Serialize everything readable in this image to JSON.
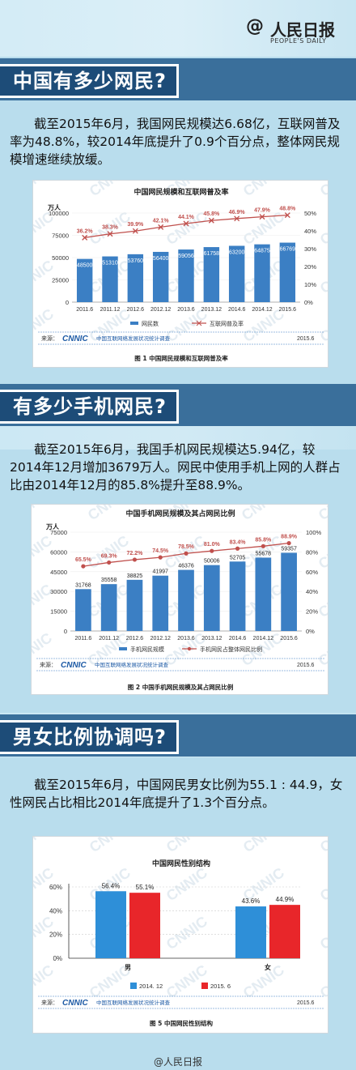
{
  "header": {
    "brand_symbol": "@",
    "brand_name": "人民日报",
    "brand_sub": "PEOPLE'S DAILY"
  },
  "colors": {
    "bar": "#3b7fc4",
    "line": "#c0504d",
    "banner": "#3a6f9b",
    "tag": "#1d4c78",
    "red_bar": "#e8262a",
    "blue_bar": "#2e8fd8"
  },
  "sections": [
    {
      "title": "中国有多少网民?",
      "paragraph": "截至2015年6月，我国网民规模达6.68亿，互联网普及率为48.8%，较2014年底提升了0.9个百分点，整体网民规模增速继续放缓。"
    },
    {
      "title": "有多少手机网民?",
      "paragraph": "截至2015年6月，我国手机网民规模达5.94亿，较2014年12月增加3679万人。网民中使用手机上网的人群占比由2014年12月的85.8%提升至88.9%。"
    },
    {
      "title": "男女比例协调吗?",
      "paragraph": "截至2015年6月，中国网民男女比例为55.1 : 44.9，女性网民占比相比2014年底提升了1.3个百分点。"
    }
  ],
  "chart_data": [
    {
      "type": "bar",
      "title": "中国网民规模和互联网普及率",
      "unit_left": "万人",
      "categories": [
        "2011.6",
        "2011.12",
        "2012.6",
        "2012.12",
        "2013.6",
        "2013.12",
        "2014.6",
        "2014.12",
        "2015.6"
      ],
      "series": [
        {
          "name": "网民数",
          "values": [
            48500,
            51310,
            53760,
            56400,
            59056,
            61758,
            63200,
            64875,
            66769
          ]
        },
        {
          "name": "互联网普及率",
          "values": [
            36.2,
            38.3,
            39.9,
            42.1,
            44.1,
            45.8,
            46.9,
            47.9,
            48.8
          ]
        }
      ],
      "rate_labels": [
        "36.2%",
        "38.3%",
        "39.9%",
        "42.1%",
        "44.1%",
        "45.8%",
        "46.9%",
        "47.9%",
        "48.8%"
      ],
      "y_ticks": [
        "0",
        "25000",
        "50000",
        "75000",
        "100000"
      ],
      "y2_ticks": [
        "0%",
        "10%",
        "20%",
        "30%",
        "40%",
        "50%"
      ],
      "ylim": [
        0,
        100000
      ],
      "y2lim": [
        0,
        50
      ],
      "source_label": "来源：",
      "source_logo": "CNNIC",
      "source_text": "中国互联网络发展状况统计调查",
      "date": "2015.6",
      "caption": "图 1 中国网民规模和互联网普及率"
    },
    {
      "type": "bar",
      "title": "中国手机网民规模及其占网民比例",
      "unit_left": "万人",
      "categories": [
        "2011.6",
        "2011.12",
        "2012.6",
        "2012.12",
        "2013.6",
        "2013.12",
        "2014.6",
        "2014.12",
        "2015.6"
      ],
      "series": [
        {
          "name": "手机网民规模",
          "values": [
            31768,
            35558,
            38825,
            41997,
            46376,
            50006,
            52705,
            55678,
            59357
          ]
        },
        {
          "name": "手机网民占整体网民比例",
          "values": [
            65.5,
            69.3,
            72.2,
            74.5,
            78.5,
            81.0,
            83.4,
            85.8,
            88.9
          ]
        }
      ],
      "rate_labels": [
        "65.5%",
        "69.3%",
        "72.2%",
        "74.5%",
        "78.5%",
        "81.0%",
        "83.4%",
        "85.8%",
        "88.9%"
      ],
      "y_ticks": [
        "0",
        "15000",
        "30000",
        "45000",
        "60000",
        "75000"
      ],
      "y2_ticks": [
        "0%",
        "20%",
        "40%",
        "60%",
        "80%",
        "100%"
      ],
      "ylim": [
        0,
        75000
      ],
      "y2lim": [
        0,
        100
      ],
      "source_label": "来源：",
      "source_logo": "CNNIC",
      "source_text": "中国互联网络发展状况统计调查",
      "date": "2015.6",
      "caption": "图 2 中国手机网民规模及其占网民比例"
    },
    {
      "type": "bar",
      "title": "中国网民性别结构",
      "categories": [
        "男",
        "女"
      ],
      "series": [
        {
          "name": "2014. 12",
          "values": [
            56.4,
            43.6
          ]
        },
        {
          "name": "2015. 6",
          "values": [
            55.1,
            44.9
          ]
        }
      ],
      "value_labels": [
        [
          "56.4%",
          "43.6%"
        ],
        [
          "55.1%",
          "44.9%"
        ]
      ],
      "y_ticks": [
        "0%",
        "20%",
        "40%",
        "60%"
      ],
      "ylim": [
        0,
        60
      ],
      "source_label": "来源：",
      "source_logo": "CNNIC",
      "source_text": "中国互联网络发展状况统计调查",
      "date": "2015.6",
      "caption": "图 5 中国网民性别结构"
    }
  ],
  "footer": {
    "brand": "@人民日报"
  }
}
